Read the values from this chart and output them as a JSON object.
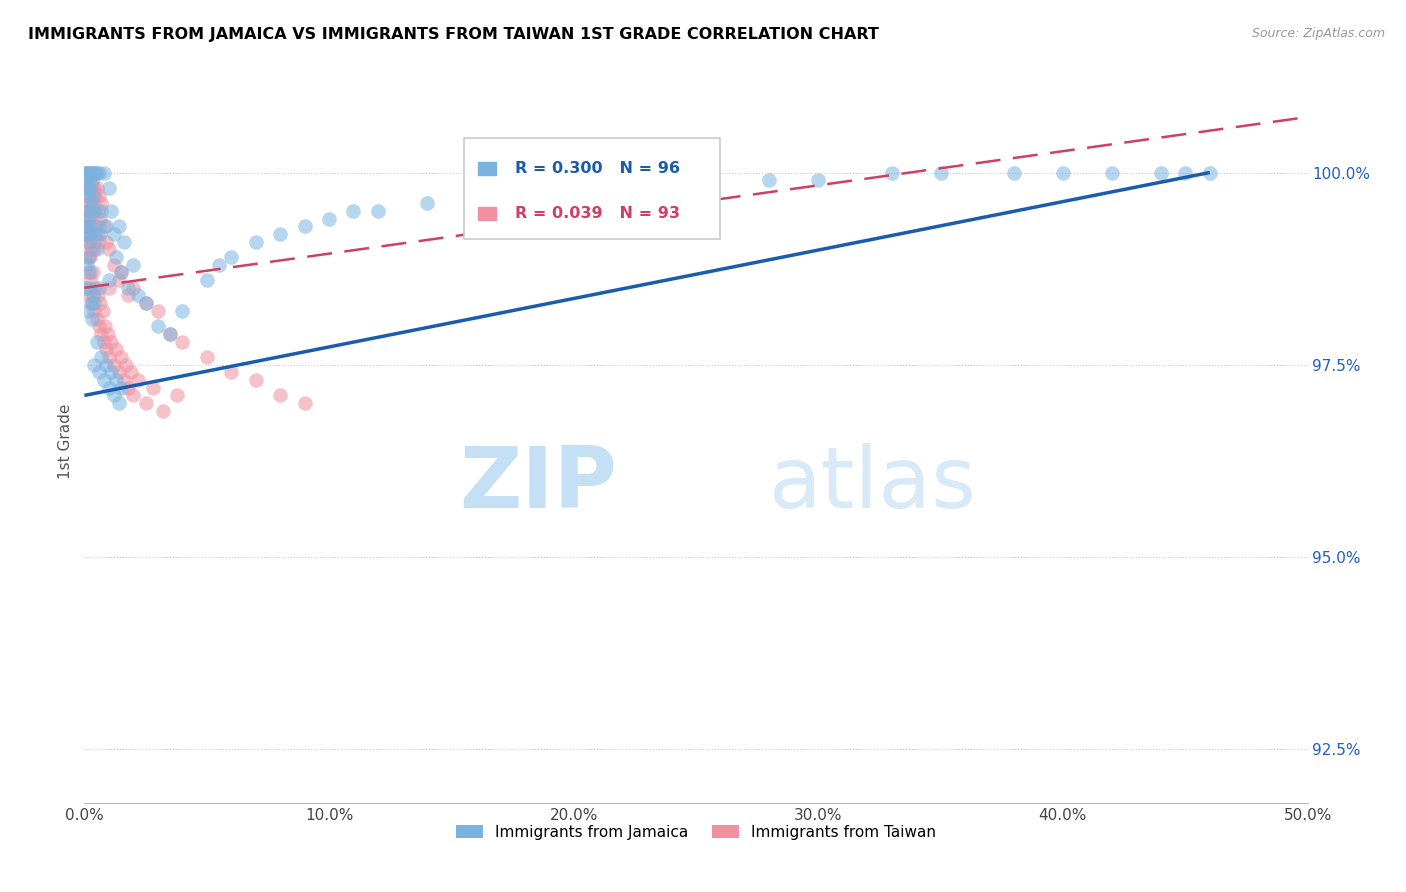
{
  "title": "IMMIGRANTS FROM JAMAICA VS IMMIGRANTS FROM TAIWAN 1ST GRADE CORRELATION CHART",
  "source": "Source: ZipAtlas.com",
  "ylabel": "1st Grade",
  "ytick_values": [
    92.5,
    95.0,
    97.5,
    100.0
  ],
  "xlim": [
    0.0,
    50.0
  ],
  "ylim": [
    91.8,
    101.2
  ],
  "legend_label_1": "Immigrants from Jamaica",
  "legend_label_2": "Immigrants from Taiwan",
  "legend_R1": "R = 0.300",
  "legend_N1": "N = 96",
  "legend_R2": "R = 0.039",
  "legend_N2": "N = 93",
  "color_jamaica": "#7ab3e0",
  "color_taiwan": "#f090a0",
  "color_jamaica_line": "#1a5cb0",
  "color_taiwan_line": "#d04060",
  "watermark_zip": "ZIP",
  "watermark_atlas": "atlas",
  "watermark_color": "#d8eaf8",
  "jamaica_x": [
    0.05,
    0.05,
    0.05,
    0.08,
    0.08,
    0.1,
    0.1,
    0.1,
    0.12,
    0.15,
    0.15,
    0.15,
    0.15,
    0.18,
    0.18,
    0.2,
    0.2,
    0.2,
    0.22,
    0.22,
    0.25,
    0.25,
    0.28,
    0.28,
    0.3,
    0.3,
    0.3,
    0.32,
    0.35,
    0.35,
    0.38,
    0.4,
    0.4,
    0.42,
    0.45,
    0.5,
    0.5,
    0.55,
    0.6,
    0.6,
    0.65,
    0.7,
    0.8,
    0.9,
    1.0,
    1.0,
    1.1,
    1.2,
    1.3,
    1.4,
    1.5,
    1.6,
    1.8,
    2.0,
    2.2,
    2.5,
    3.0,
    3.5,
    4.0,
    5.0,
    5.5,
    6.0,
    7.0,
    8.0,
    9.0,
    10.0,
    11.0,
    12.0,
    14.0,
    16.0,
    18.0,
    20.0,
    22.0,
    25.0,
    28.0,
    30.0,
    33.0,
    35.0,
    38.0,
    40.0,
    42.0,
    44.0,
    45.0,
    46.0,
    0.4,
    0.5,
    0.6,
    0.7,
    0.8,
    0.9,
    1.0,
    1.1,
    1.2,
    1.3,
    1.4,
    1.5
  ],
  "jamaica_y": [
    99.8,
    99.2,
    98.5,
    100.0,
    99.5,
    99.9,
    99.3,
    98.8,
    100.0,
    99.8,
    99.4,
    98.9,
    98.2,
    100.0,
    99.3,
    99.7,
    99.1,
    98.5,
    100.0,
    99.2,
    99.8,
    98.7,
    99.6,
    98.3,
    99.9,
    99.5,
    98.1,
    100.0,
    99.7,
    98.4,
    100.0,
    99.5,
    98.3,
    100.0,
    99.2,
    100.0,
    99.0,
    99.3,
    100.0,
    98.5,
    99.2,
    99.5,
    100.0,
    99.3,
    99.8,
    98.6,
    99.5,
    99.2,
    98.9,
    99.3,
    98.7,
    99.1,
    98.5,
    98.8,
    98.4,
    98.3,
    98.0,
    97.9,
    98.2,
    98.6,
    98.8,
    98.9,
    99.1,
    99.2,
    99.3,
    99.4,
    99.5,
    99.5,
    99.6,
    99.7,
    99.7,
    99.8,
    99.8,
    99.9,
    99.9,
    99.9,
    100.0,
    100.0,
    100.0,
    100.0,
    100.0,
    100.0,
    100.0,
    100.0,
    97.5,
    97.8,
    97.4,
    97.6,
    97.3,
    97.5,
    97.2,
    97.4,
    97.1,
    97.3,
    97.0,
    97.2
  ],
  "taiwan_x": [
    0.05,
    0.05,
    0.08,
    0.08,
    0.1,
    0.1,
    0.1,
    0.12,
    0.12,
    0.15,
    0.15,
    0.15,
    0.15,
    0.18,
    0.18,
    0.18,
    0.2,
    0.2,
    0.2,
    0.22,
    0.22,
    0.25,
    0.25,
    0.25,
    0.28,
    0.3,
    0.3,
    0.3,
    0.32,
    0.35,
    0.35,
    0.38,
    0.4,
    0.4,
    0.42,
    0.45,
    0.5,
    0.5,
    0.55,
    0.6,
    0.6,
    0.65,
    0.7,
    0.8,
    0.9,
    1.0,
    1.0,
    1.2,
    1.4,
    1.5,
    1.8,
    2.0,
    2.5,
    3.0,
    3.5,
    4.0,
    5.0,
    6.0,
    7.0,
    8.0,
    9.0,
    0.2,
    0.25,
    0.3,
    0.35,
    0.4,
    0.45,
    0.5,
    0.55,
    0.6,
    0.65,
    0.7,
    0.75,
    0.8,
    0.85,
    0.9,
    0.95,
    1.0,
    1.1,
    1.2,
    1.3,
    1.4,
    1.5,
    1.6,
    1.7,
    1.8,
    1.9,
    2.0,
    2.2,
    2.5,
    2.8,
    3.2,
    3.8
  ],
  "taiwan_y": [
    100.0,
    99.5,
    99.8,
    99.2,
    100.0,
    99.6,
    99.1,
    99.9,
    99.3,
    100.0,
    99.7,
    99.2,
    98.7,
    99.8,
    99.4,
    98.9,
    99.9,
    99.5,
    99.0,
    99.8,
    99.3,
    99.9,
    99.4,
    98.9,
    99.7,
    100.0,
    99.5,
    99.0,
    99.8,
    99.6,
    99.1,
    99.8,
    99.5,
    99.0,
    99.7,
    99.3,
    99.8,
    99.2,
    99.5,
    99.7,
    99.1,
    99.4,
    99.6,
    99.3,
    99.1,
    99.0,
    98.5,
    98.8,
    98.6,
    98.7,
    98.4,
    98.5,
    98.3,
    98.2,
    97.9,
    97.8,
    97.6,
    97.4,
    97.3,
    97.1,
    97.0,
    98.4,
    98.6,
    98.3,
    98.7,
    98.2,
    98.5,
    98.1,
    98.4,
    98.0,
    98.3,
    97.9,
    98.2,
    97.8,
    98.0,
    97.7,
    97.9,
    97.6,
    97.8,
    97.5,
    97.7,
    97.4,
    97.6,
    97.3,
    97.5,
    97.2,
    97.4,
    97.1,
    97.3,
    97.0,
    97.2,
    96.9,
    97.1
  ],
  "jamaica_line_x0": 0.0,
  "jamaica_line_y0": 97.1,
  "jamaica_line_x1": 46.0,
  "jamaica_line_y1": 100.0,
  "taiwan_line_x0": 0.0,
  "taiwan_line_y0": 98.5,
  "taiwan_line_x1": 9.0,
  "taiwan_line_y1": 98.9
}
